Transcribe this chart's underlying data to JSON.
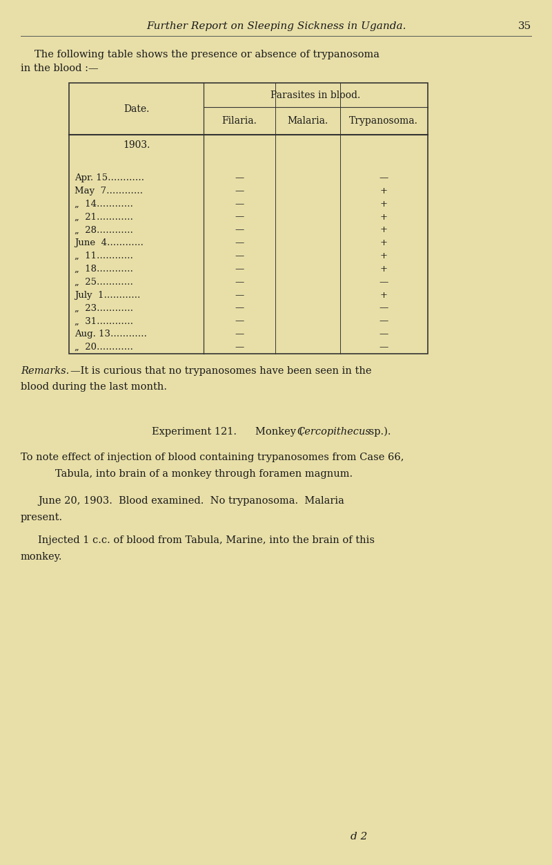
{
  "bg_color": "#e8dfa8",
  "page_width": 8.0,
  "page_height": 12.52,
  "header_italic": "Further Report on Sleeping Sickness in Uganda.",
  "header_page_num": "35",
  "intro_line1": "The following table shows the presence or absence of trypanosoma",
  "intro_line2": "in the blood :—",
  "table_header_top": "Parasites in blood.",
  "table_col0": "Date.",
  "table_col1": "Filaria.",
  "table_col2": "Malaria.",
  "table_col3": "Trypanosoma.",
  "table_year": "1903.",
  "table_rows": [
    [
      "Apr. 15…………",
      "—",
      "—"
    ],
    [
      "May  7…………",
      "—",
      "+"
    ],
    [
      "„  14…………",
      "—",
      "+"
    ],
    [
      "„  21…………",
      "—",
      "+"
    ],
    [
      "„  28…………",
      "—",
      "+"
    ],
    [
      "June  4…………",
      "—",
      "+"
    ],
    [
      "„  11…………",
      "—",
      "+"
    ],
    [
      "„  18…………",
      "—",
      "+"
    ],
    [
      "„  25…………",
      "—",
      "—"
    ],
    [
      "July  1…………",
      "—",
      "+"
    ],
    [
      "„  23…………",
      "—",
      "—"
    ],
    [
      "„  31…………",
      "—",
      "—"
    ],
    [
      "Aug. 13…………",
      "—",
      "—"
    ],
    [
      "„  20…………",
      "—",
      "—"
    ]
  ],
  "remarks_italic": "Remarks.",
  "remarks_rest": "—It is curious that no trypanosomes have been seen in the",
  "remarks_line2": "blood during the last month.",
  "exp_label_sc": "Experiment 121.",
  "exp_monkey": "Monkey (",
  "exp_italic": "Cercopithecus",
  "exp_end": " sp.).",
  "exp_desc1": "To note effect of injection of blood containing trypanosomes from Case 66,",
  "exp_desc2": "Tabula, into brain of a monkey through foramen magnum.",
  "june_text": "June 20, 1903.  Blood examined.  No trypanosoma.  Malaria",
  "june_text2": "present.",
  "inj_text1": "Injected 1 c.c. of blood from Tabula, Marine, into the brain of this",
  "inj_text2": "monkey.",
  "footer": "d 2"
}
